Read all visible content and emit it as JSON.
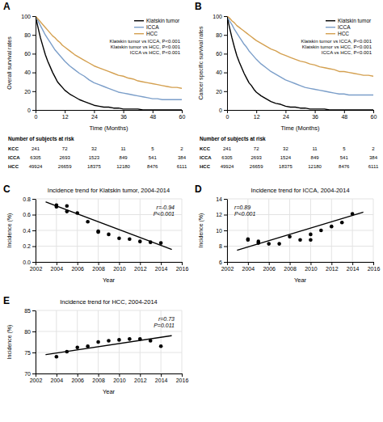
{
  "chart_data": [
    {
      "type": "line",
      "panel_label": "A",
      "xlabel": "Time (Months)",
      "ylabel": "Overall survival rates",
      "xlim": [
        0,
        60
      ],
      "ylim": [
        0,
        100
      ],
      "xticks": [
        0,
        12,
        24,
        36,
        48,
        60
      ],
      "yticks": [
        0,
        20,
        40,
        60,
        80,
        100
      ],
      "x": [
        0,
        1,
        2,
        3,
        4,
        5,
        6,
        7,
        8,
        9,
        10,
        11,
        12,
        14,
        16,
        18,
        20,
        22,
        24,
        26,
        28,
        30,
        32,
        34,
        36,
        38,
        40,
        42,
        44,
        46,
        48,
        50,
        52,
        54,
        56,
        58,
        60
      ],
      "series": [
        {
          "name": "Klatskin tumor",
          "color": "#000000",
          "values": [
            100,
            88,
            77,
            68,
            59,
            52,
            46,
            40,
            35,
            30,
            27,
            24,
            21,
            17,
            14,
            11,
            9,
            7,
            5,
            4,
            3,
            3,
            2,
            2,
            1,
            1,
            1,
            1,
            0,
            0,
            0,
            0,
            0,
            0,
            0,
            0,
            0
          ]
        },
        {
          "name": "ICCA",
          "color": "#7b9ec9",
          "values": [
            100,
            95,
            90,
            85,
            80,
            76,
            72,
            68,
            64,
            61,
            58,
            55,
            52,
            47,
            43,
            39,
            36,
            32,
            29,
            27,
            25,
            23,
            21,
            19,
            18,
            17,
            16,
            15,
            14,
            13,
            12,
            12,
            11,
            11,
            11,
            11,
            11
          ]
        },
        {
          "name": "HCC",
          "color": "#d4a050",
          "values": [
            100,
            97,
            94,
            91,
            88,
            85,
            82,
            79,
            77,
            74,
            72,
            69,
            67,
            63,
            59,
            56,
            53,
            50,
            47,
            45,
            43,
            41,
            39,
            37,
            36,
            34,
            33,
            31,
            30,
            29,
            28,
            27,
            26,
            25,
            24,
            24,
            23
          ]
        }
      ],
      "legend": "upper right",
      "annotation": [
        "Klatskin tumor vs ICCA, P<0.001",
        "Klatskin tumor vs HCC, P<0.001",
        "ICCA vs HCC, P<0.001"
      ],
      "risk_table": {
        "title": "Number of subjects at risk",
        "times": [
          0,
          12,
          24,
          36,
          48,
          60
        ],
        "rows": [
          {
            "name": "KCC",
            "values": [
              241,
              72,
              32,
              11,
              5,
              2
            ]
          },
          {
            "name": "ICCA",
            "values": [
              6305,
              2693,
              1523,
              849,
              541,
              384
            ]
          },
          {
            "name": "HCC",
            "values": [
              49924,
              26659,
              18375,
              12180,
              8476,
              6111
            ]
          }
        ]
      }
    },
    {
      "type": "line",
      "panel_label": "B",
      "xlabel": "Time (Months)",
      "ylabel": "Cancer specific survival rates",
      "xlim": [
        0,
        60
      ],
      "ylim": [
        0,
        100
      ],
      "xticks": [
        0,
        12,
        24,
        36,
        48,
        60
      ],
      "yticks": [
        0,
        20,
        40,
        60,
        80,
        100
      ],
      "x": [
        0,
        1,
        2,
        3,
        4,
        5,
        6,
        7,
        8,
        9,
        10,
        11,
        12,
        14,
        16,
        18,
        20,
        22,
        24,
        26,
        28,
        30,
        32,
        34,
        36,
        38,
        40,
        42,
        44,
        46,
        48,
        50,
        52,
        54,
        56,
        58,
        60
      ],
      "series": [
        {
          "name": "Klatskin tumor",
          "color": "#000000",
          "values": [
            100,
            88,
            77,
            67,
            58,
            51,
            45,
            39,
            34,
            29,
            26,
            22,
            19,
            15,
            12,
            9,
            7,
            6,
            4,
            3,
            3,
            2,
            2,
            1,
            1,
            1,
            1,
            0,
            0,
            0,
            0,
            0,
            0,
            0,
            0,
            0,
            0
          ]
        },
        {
          "name": "ICCA",
          "color": "#7b9ec9",
          "values": [
            100,
            95,
            91,
            86,
            82,
            78,
            74,
            70,
            67,
            63,
            60,
            57,
            54,
            49,
            45,
            41,
            38,
            35,
            32,
            30,
            28,
            26,
            24,
            23,
            22,
            21,
            20,
            19,
            18,
            17,
            17,
            16,
            16,
            16,
            16,
            16,
            16
          ]
        },
        {
          "name": "HCC",
          "color": "#d4a050",
          "values": [
            100,
            98,
            95,
            93,
            90,
            88,
            86,
            84,
            82,
            80,
            78,
            76,
            74,
            71,
            68,
            65,
            63,
            60,
            58,
            56,
            54,
            52,
            51,
            49,
            48,
            46,
            45,
            44,
            43,
            41,
            41,
            40,
            39,
            38,
            37,
            37,
            36
          ]
        }
      ],
      "legend": "upper right",
      "annotation": [
        "Klatskin tumor vs ICCA, P<0.001",
        "Klatskin tumor vs HCC, P<0.001",
        "ICCA vs HCC, P<0.001"
      ],
      "risk_table": {
        "title": "Number of subjects at risk",
        "times": [
          0,
          12,
          24,
          36,
          48,
          60
        ],
        "rows": [
          {
            "name": "KCC",
            "values": [
              241,
              72,
              32,
              11,
              5,
              2
            ]
          },
          {
            "name": "ICCA",
            "values": [
              6305,
              2693,
              1524,
              849,
              541,
              384
            ]
          },
          {
            "name": "HCC",
            "values": [
              49924,
              26659,
              18375,
              12180,
              8476,
              6111
            ]
          }
        ]
      }
    },
    {
      "type": "scatter",
      "panel_label": "C",
      "title": "Incidence trend for Klatskin tumor, 2004-2014",
      "xlabel": "Year",
      "ylabel": "Incidence (%)",
      "xlim": [
        2002,
        2016
      ],
      "ylim": [
        0.0,
        0.8
      ],
      "xticks": [
        2002,
        2004,
        2006,
        2008,
        2010,
        2012,
        2014,
        2016
      ],
      "yticks": [
        {
          "value": 0.0,
          "label": "0.0"
        },
        0.2,
        0.4,
        0.6,
        0.8
      ],
      "grid": true,
      "series": [
        {
          "type": "scatter",
          "color": "#000000",
          "x": [
            2004,
            2004,
            2005,
            2005,
            2006,
            2007,
            2008,
            2008,
            2009,
            2010,
            2011,
            2012,
            2013,
            2014
          ],
          "values": [
            0.7,
            0.72,
            0.64,
            0.71,
            0.62,
            0.51,
            0.39,
            0.38,
            0.35,
            0.3,
            0.29,
            0.26,
            0.25,
            0.24
          ]
        },
        {
          "type": "line",
          "color": "#000000",
          "x": [
            2003.0,
            2015.0
          ],
          "values": [
            0.76,
            0.16
          ]
        }
      ],
      "annotation": [
        "r=-0.94",
        "P<0.001"
      ]
    },
    {
      "type": "scatter",
      "panel_label": "D",
      "title": "Incidence trend for ICCA, 2004-2014",
      "xlabel": "Year",
      "ylabel": "Incidence (%)",
      "xlim": [
        2002,
        2016
      ],
      "ylim": [
        6,
        14
      ],
      "xticks": [
        2002,
        2004,
        2006,
        2008,
        2010,
        2012,
        2014,
        2016
      ],
      "yticks": [
        6,
        8,
        10,
        12,
        14
      ],
      "grid": true,
      "series": [
        {
          "type": "scatter",
          "color": "#000000",
          "x": [
            2004,
            2004,
            2005,
            2005,
            2006,
            2007,
            2008,
            2009,
            2010,
            2010,
            2011,
            2012,
            2013,
            2014
          ],
          "values": [
            8.8,
            8.9,
            8.4,
            8.6,
            8.3,
            8.3,
            9.2,
            8.8,
            9.5,
            8.8,
            10.0,
            10.5,
            11.0,
            12.1
          ]
        },
        {
          "type": "line",
          "color": "#000000",
          "x": [
            2003.0,
            2015.0
          ],
          "values": [
            7.5,
            12.3
          ]
        }
      ],
      "annotation": [
        "r=0.89",
        "P<0.001"
      ]
    },
    {
      "type": "scatter",
      "panel_label": "E",
      "title": "Incidence trend for HCC, 2004-2014",
      "xlabel": "Year",
      "ylabel": "Incidence (%)",
      "xlim": [
        2002,
        2016
      ],
      "ylim": [
        70,
        85
      ],
      "xticks": [
        2002,
        2004,
        2006,
        2008,
        2010,
        2012,
        2014,
        2016
      ],
      "yticks": [
        70,
        75,
        80,
        85
      ],
      "grid": true,
      "series": [
        {
          "type": "scatter",
          "color": "#000000",
          "x": [
            2004,
            2005,
            2006,
            2007,
            2008,
            2009,
            2010,
            2011,
            2012,
            2013,
            2014
          ],
          "values": [
            74.0,
            75.2,
            76.2,
            76.5,
            77.5,
            77.8,
            78.0,
            78.2,
            78.2,
            77.8,
            76.5
          ]
        },
        {
          "type": "line",
          "color": "#000000",
          "x": [
            2003.0,
            2015.0
          ],
          "values": [
            74.5,
            79.0
          ]
        }
      ],
      "annotation": [
        "r=0.73",
        "P=0.011"
      ]
    }
  ]
}
